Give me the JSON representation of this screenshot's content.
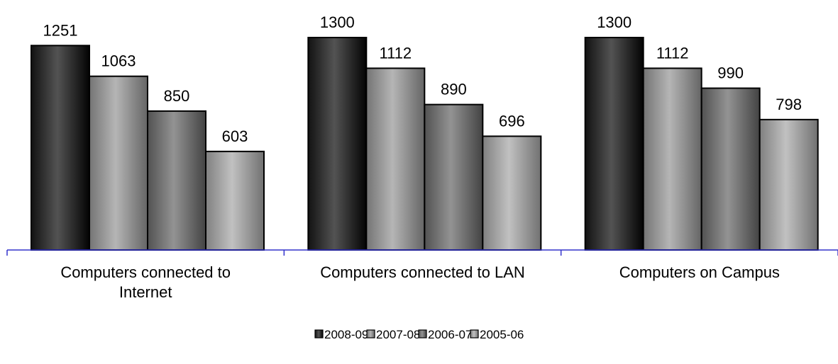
{
  "chart_data": {
    "type": "bar",
    "categories": [
      [
        "Computers connected to",
        "Internet"
      ],
      [
        "Computers connected to LAN"
      ],
      [
        "Computers on Campus"
      ]
    ],
    "series": [
      {
        "name": "2008-09",
        "values": [
          1251,
          1300,
          1300
        ],
        "color": "#3a3a3a"
      },
      {
        "name": "2007-08",
        "values": [
          1063,
          1112,
          1112
        ],
        "color": "#9c9c9c"
      },
      {
        "name": "2006-07",
        "values": [
          850,
          890,
          990
        ],
        "color": "#7a7a7a"
      },
      {
        "name": "2005-06",
        "values": [
          603,
          696,
          798
        ],
        "color": "#a8a8a8"
      }
    ],
    "ylim": [
      0,
      1300
    ],
    "legend_position": "bottom",
    "grid": false,
    "data_labels": true,
    "axis_color": "#3333cc"
  }
}
